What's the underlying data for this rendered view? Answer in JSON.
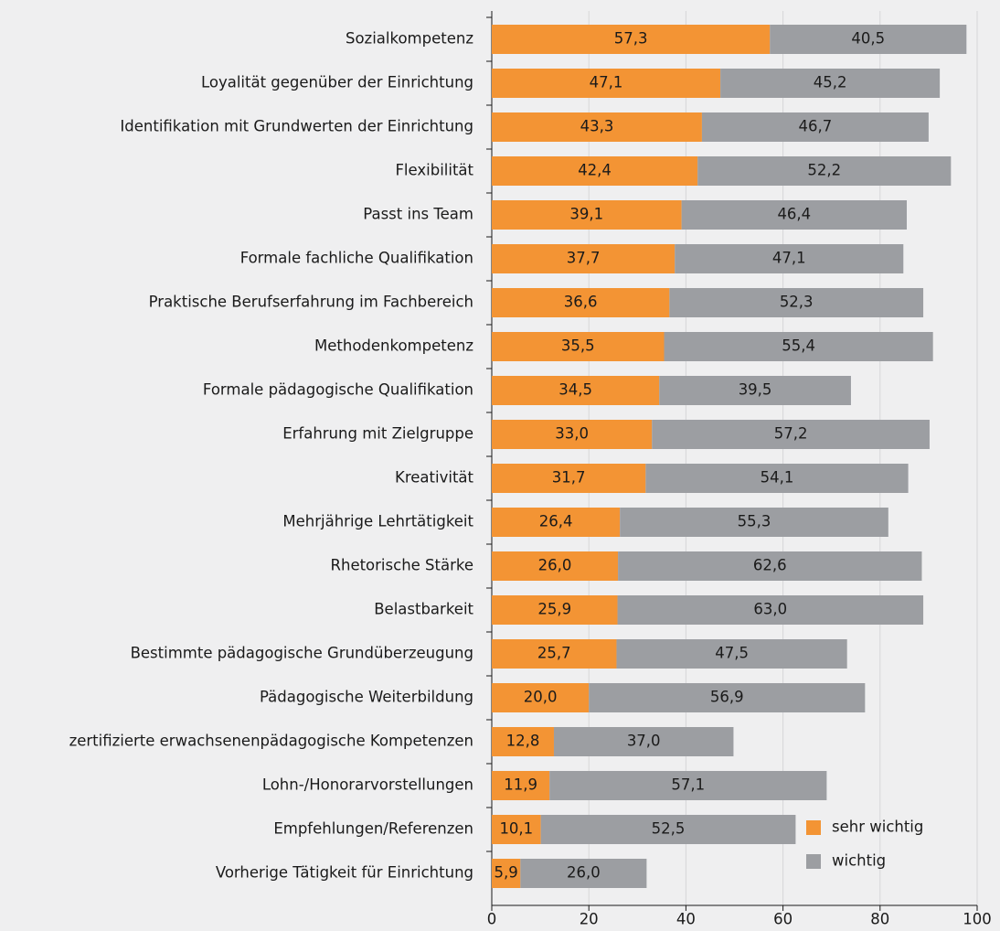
{
  "chart_data": {
    "type": "stacked_bar_horizontal",
    "categories": [
      "Sozialkompetenz",
      "Loyalität gegenüber der Einrichtung",
      "Identifikation mit Grundwerten der Einrichtung",
      "Flexibilität",
      "Passt ins Team",
      "Formale fachliche Qualifikation",
      "Praktische Berufserfahrung im Fachbereich",
      "Methodenkompetenz",
      "Formale pädagogische Qualifikation",
      "Erfahrung mit Zielgruppe",
      "Kreativität",
      "Mehrjährige Lehrtätigkeit",
      "Rhetorische Stärke",
      "Belastbarkeit",
      "Bestimmte pädagogische Grundüberzeugung",
      "Pädagogische Weiterbildung",
      "zertifizierte erwachsenenpädagogische Kompetenzen",
      "Lohn-/Honorarvorstellungen",
      "Empfehlungen/Referenzen",
      "Vorherige Tätigkeit für Einrichtung"
    ],
    "series": [
      {
        "name": "sehr wichtig",
        "color": "#f39434",
        "label_color": "#ffffff",
        "values": [
          57.3,
          47.1,
          43.3,
          42.4,
          39.1,
          37.7,
          36.6,
          35.5,
          34.5,
          33.0,
          31.7,
          26.4,
          26.0,
          25.9,
          25.7,
          20.0,
          12.8,
          11.9,
          10.1,
          5.9
        ],
        "value_labels": [
          "57,3",
          "47,1",
          "43,3",
          "42,4",
          "39,1",
          "37,7",
          "36,6",
          "35,5",
          "34,5",
          "33,0",
          "31,7",
          "26,4",
          "26,0",
          "25,9",
          "25,7",
          "20,0",
          "12,8",
          "11,9",
          "10,1",
          "5,9"
        ]
      },
      {
        "name": "wichtig",
        "color": "#9c9ea2",
        "label_color": "#1a1a1a",
        "values": [
          40.5,
          45.2,
          46.7,
          52.2,
          46.4,
          47.1,
          52.3,
          55.4,
          39.5,
          57.2,
          54.1,
          55.3,
          62.6,
          63.0,
          47.5,
          56.9,
          37.0,
          57.1,
          52.5,
          26.0
        ],
        "value_labels": [
          "40,5",
          "45,2",
          "46,7",
          "52,2",
          "46,4",
          "47,1",
          "52,3",
          "55,4",
          "39,5",
          "57,2",
          "54,1",
          "55,3",
          "62,6",
          "63,0",
          "47,5",
          "56,9",
          "37,0",
          "57,1",
          "52,5",
          "26,0"
        ]
      }
    ],
    "xlim": [
      0,
      100
    ],
    "xticks": [
      0,
      20,
      40,
      60,
      80,
      100
    ],
    "grid": true,
    "legend": "lower right"
  }
}
